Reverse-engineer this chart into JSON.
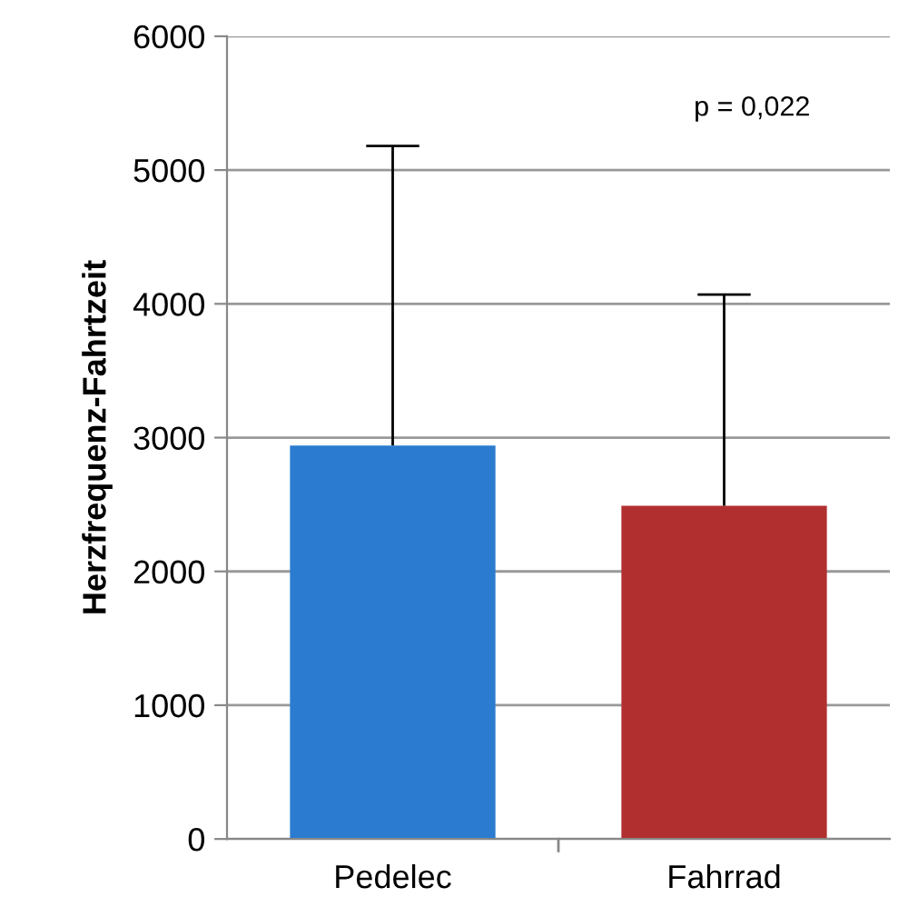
{
  "chart_data": {
    "type": "bar",
    "ylabel": "Herzfrequenz-Fahrtzeit",
    "categories": [
      "Pedelec",
      "Fahrrad"
    ],
    "values": [
      2940,
      2490
    ],
    "colors": [
      "#2b7cd0",
      "#b1302f"
    ],
    "errors": [
      [
        2940,
        5180
      ],
      [
        2490,
        4070
      ]
    ],
    "ylim": [
      0,
      6000
    ],
    "yticks": [
      0,
      1000,
      2000,
      3000,
      4000,
      5000,
      6000
    ],
    "grid": "y",
    "annotations": [
      "p = 0,022"
    ]
  }
}
